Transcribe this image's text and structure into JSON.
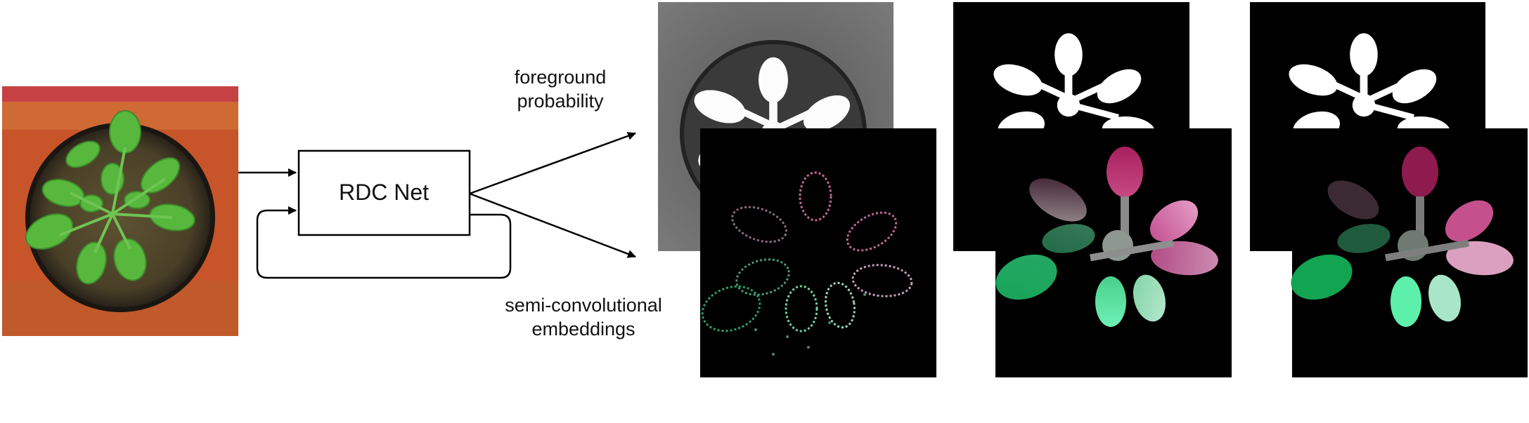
{
  "diagram": {
    "model_box_label": "RDC Net",
    "foreground_label": [
      "foreground",
      "probability"
    ],
    "embedding_label": [
      "semi-convolutional",
      "embeddings"
    ]
  },
  "colors": {
    "line": "#000000",
    "soil": "#5e5231",
    "leaf_green": "#58b83e",
    "tray_orange": "#c8542a",
    "embed_pink": "#d2448a",
    "embed_green": "#2ec27a"
  },
  "icons": {
    "input_image": "plant-photo",
    "prob_map": "foreground-probability-map",
    "embed_map": "embedding-map",
    "masks": "segmentation-mask"
  }
}
